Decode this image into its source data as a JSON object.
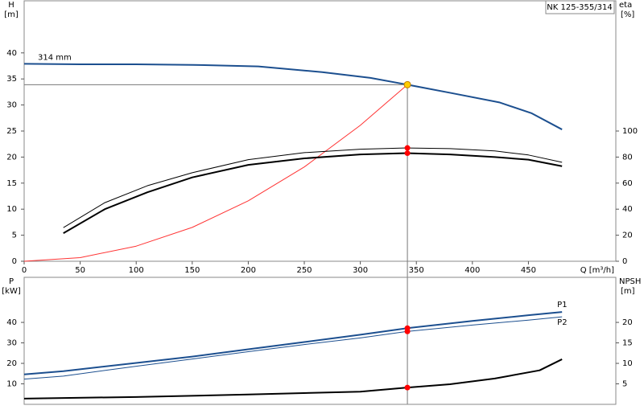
{
  "chart_data": [
    {
      "type": "line",
      "title": "NK 125-355/314",
      "annotation": "314 mm",
      "ylabel": "H",
      "yunit": "[m]",
      "y2label": "eta",
      "y2unit": "[%]",
      "xlabel": "Q [m³/h]",
      "xlim": [
        0,
        528
      ],
      "xticks": [
        0,
        50,
        100,
        150,
        200,
        250,
        300,
        350,
        400,
        450
      ],
      "ylim": [
        0,
        50
      ],
      "yticks": [
        0,
        5,
        10,
        15,
        20,
        25,
        30,
        35,
        40
      ],
      "y2lim": [
        0,
        200
      ],
      "y2ticks": [
        0,
        20,
        40,
        60,
        80,
        100
      ],
      "op_x": 342,
      "series": [
        {
          "color": "#1c4f8f",
          "style": "thick",
          "op_marker": "#ffcc00",
          "guide": true,
          "x": [
            0,
            50,
            100,
            151,
            209,
            266,
            309,
            342,
            381,
            424,
            453,
            480
          ],
          "values": [
            37.9,
            37.8,
            37.8,
            37.7,
            37.4,
            36.3,
            35.2,
            33.9,
            32.3,
            30.5,
            28.4,
            25.3
          ]
        },
        {
          "color": "#ff3333",
          "style": "thin",
          "x": [
            0,
            50,
            100,
            150,
            200,
            250,
            300,
            342
          ],
          "values": [
            0,
            0.7,
            2.9,
            6.5,
            11.6,
            18.1,
            26.1,
            33.9
          ]
        },
        {
          "color": "#000000",
          "style": "thick",
          "axis": "y2",
          "op_marker": "#ff0000",
          "x": [
            35,
            72,
            110,
            150,
            200,
            250,
            300,
            342,
            380,
            420,
            450,
            480
          ],
          "values": [
            21.5,
            40,
            53,
            64.4,
            74,
            79,
            82,
            83,
            82,
            80,
            78,
            73
          ]
        },
        {
          "color": "#000000",
          "style": "thin",
          "axis": "y2",
          "op_marker": "#ff0000",
          "x": [
            35,
            72,
            110,
            150,
            200,
            250,
            300,
            342,
            380,
            420,
            450,
            480
          ],
          "values": [
            25.8,
            45,
            58,
            68,
            78,
            83.4,
            86,
            87,
            86.5,
            84.7,
            81.6,
            76
          ]
        }
      ]
    },
    {
      "type": "line",
      "ylabel": "P",
      "yunit": "[kW]",
      "y2label": "NPSH",
      "y2unit": "[m]",
      "xlim": [
        0,
        528
      ],
      "ylim": [
        0,
        62
      ],
      "yticks": [
        10,
        20,
        30,
        40
      ],
      "y2lim": [
        0,
        31
      ],
      "y2ticks": [
        5,
        10,
        15,
        20
      ],
      "op_x": 342,
      "series": [
        {
          "name": "P1",
          "color": "#1c4f8f",
          "style": "thick",
          "op_marker": "#ff0000",
          "x": [
            0,
            35,
            100,
            150,
            200,
            250,
            300,
            342,
            400,
            450,
            480
          ],
          "values": [
            14.6,
            16.2,
            20.2,
            23.3,
            26.9,
            30.4,
            34,
            37.2,
            40.7,
            43.5,
            45.1
          ]
        },
        {
          "name": "P2",
          "color": "#1c4f8f",
          "style": "thin",
          "op_marker": "#ff0000",
          "x": [
            0,
            35,
            100,
            150,
            200,
            250,
            300,
            342,
            400,
            450,
            480
          ],
          "values": [
            12.3,
            13.8,
            18.6,
            22.1,
            25.7,
            29.2,
            32.4,
            35.6,
            38.7,
            41.1,
            42.7
          ]
        },
        {
          "color": "#000000",
          "style": "thick",
          "axis": "y2",
          "op_marker": "#ff0000",
          "x": [
            0,
            100,
            200,
            300,
            342,
            380,
            420,
            460,
            480
          ],
          "values": [
            1.4,
            1.8,
            2.4,
            3.1,
            4.1,
            4.9,
            6.3,
            8.3,
            11.0
          ]
        }
      ]
    }
  ]
}
